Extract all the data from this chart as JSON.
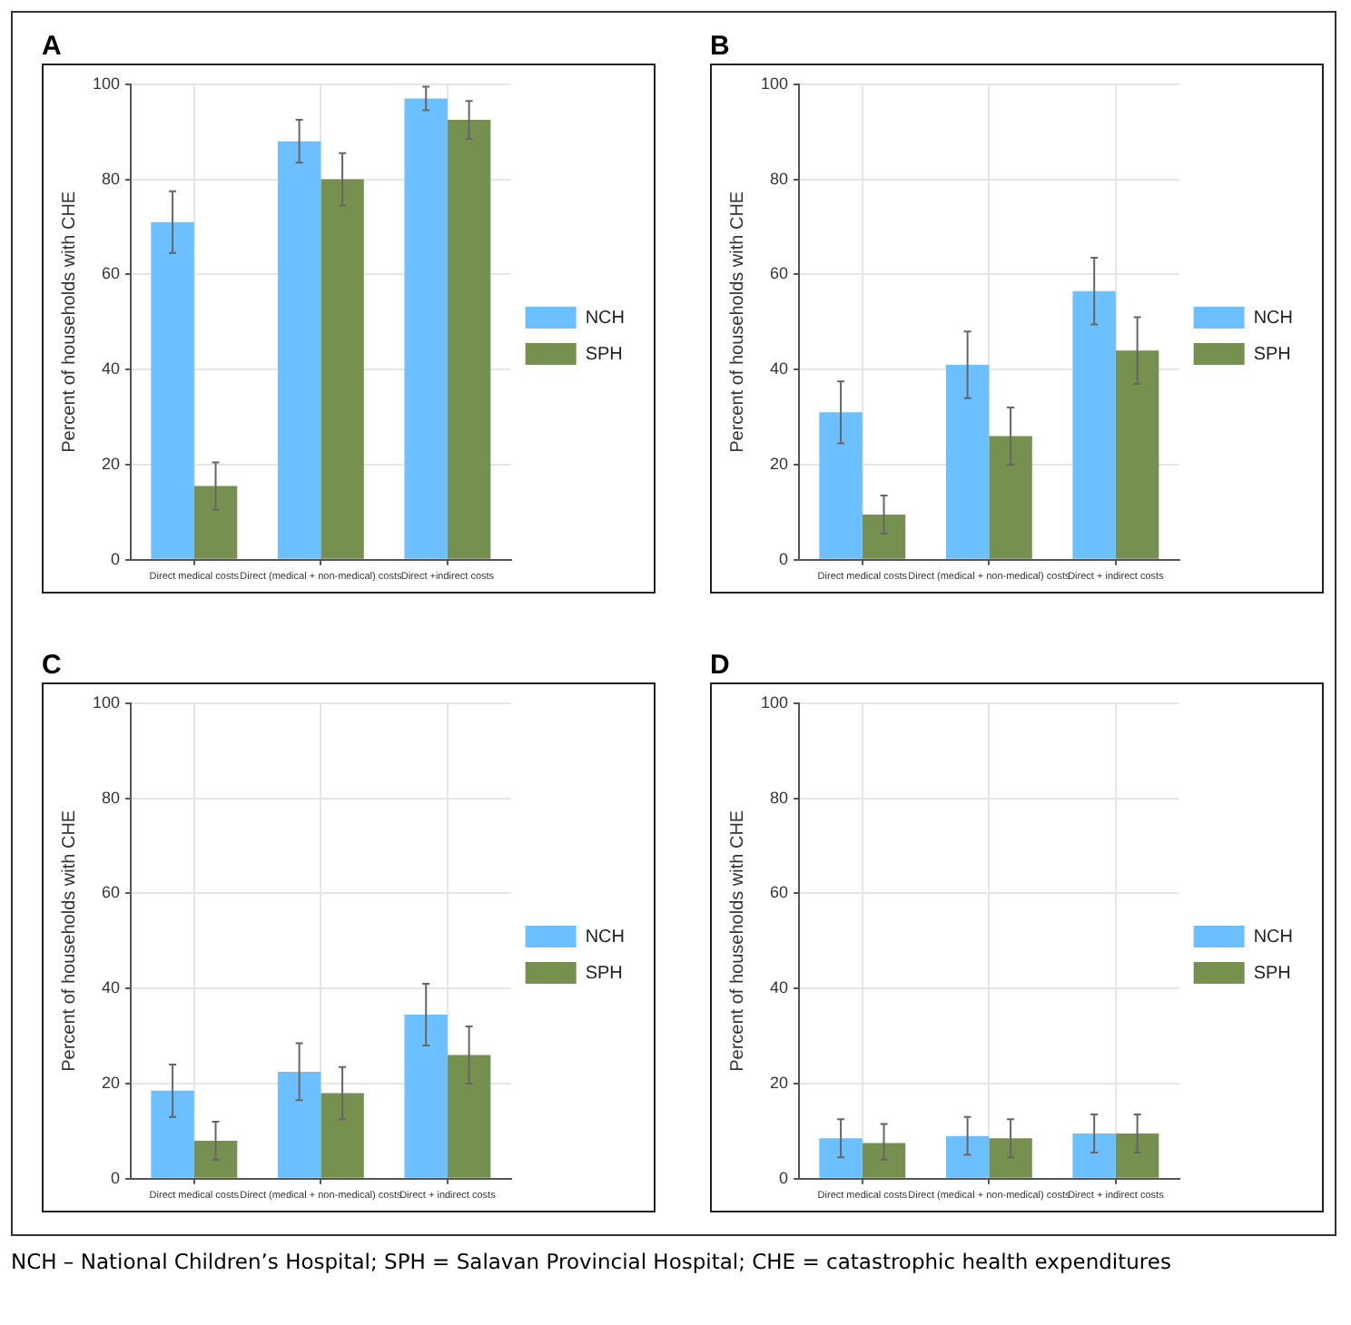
{
  "chart_data": [
    {
      "type": "bar",
      "title": "A",
      "ylabel": "Percent of households with CHE",
      "categories": [
        "Direct medical costs",
        "Direct (medical + non-medical) costs",
        "Direct +indirect costs"
      ],
      "ylim": [
        0,
        100
      ],
      "yticks": [
        0,
        20,
        40,
        60,
        80,
        100
      ],
      "grid": true,
      "legend": "right",
      "series": [
        {
          "name": "NCH",
          "color": "#6cc0ff",
          "values": [
            71,
            88,
            97
          ],
          "errors": [
            [
              64.5,
              77.5
            ],
            [
              83.5,
              92.5
            ],
            [
              94.5,
              99.5
            ]
          ]
        },
        {
          "name": "SPH",
          "color": "#76904f",
          "values": [
            15.5,
            80,
            92.5
          ],
          "errors": [
            [
              10.5,
              20.5
            ],
            [
              74.5,
              85.5
            ],
            [
              88.5,
              96.5
            ]
          ]
        }
      ]
    },
    {
      "type": "bar",
      "title": "B",
      "ylabel": "Percent of households with CHE",
      "categories": [
        "Direct medical costs",
        "Direct (medical + non-medical) costs",
        "Direct + indirect costs"
      ],
      "ylim": [
        0,
        100
      ],
      "yticks": [
        0,
        20,
        40,
        60,
        80,
        100
      ],
      "grid": true,
      "legend": "right",
      "series": [
        {
          "name": "NCH",
          "color": "#6cc0ff",
          "values": [
            31,
            41,
            56.5
          ],
          "errors": [
            [
              24.5,
              37.5
            ],
            [
              34,
              48
            ],
            [
              49.5,
              63.5
            ]
          ]
        },
        {
          "name": "SPH",
          "color": "#76904f",
          "values": [
            9.5,
            26,
            44
          ],
          "errors": [
            [
              5.5,
              13.5
            ],
            [
              20,
              32
            ],
            [
              37,
              51
            ]
          ]
        }
      ]
    },
    {
      "type": "bar",
      "title": "C",
      "ylabel": "Percent of households with CHE",
      "categories": [
        "Direct medical costs",
        "Direct (medical + non-medical) costs",
        "Direct + indirect costs"
      ],
      "ylim": [
        0,
        100
      ],
      "yticks": [
        0,
        20,
        40,
        60,
        80,
        100
      ],
      "grid": true,
      "legend": "right",
      "series": [
        {
          "name": "NCH",
          "color": "#6cc0ff",
          "values": [
            18.5,
            22.5,
            34.5
          ],
          "errors": [
            [
              13,
              24
            ],
            [
              16.5,
              28.5
            ],
            [
              28,
              41
            ]
          ]
        },
        {
          "name": "SPH",
          "color": "#76904f",
          "values": [
            8,
            18,
            26
          ],
          "errors": [
            [
              4,
              12
            ],
            [
              12.5,
              23.5
            ],
            [
              20,
              32
            ]
          ]
        }
      ]
    },
    {
      "type": "bar",
      "title": "D",
      "ylabel": "Percent of households with CHE",
      "categories": [
        "Direct medical costs",
        "Direct (medical + non-medical) costs",
        "Direct + indirect costs"
      ],
      "ylim": [
        0,
        100
      ],
      "yticks": [
        0,
        20,
        40,
        60,
        80,
        100
      ],
      "grid": true,
      "legend": "right",
      "annotations": [
        "NCH – National Children’s Hospital; SPH = Salavan Provincial Hospital; CHE = catastrophic health expenditures"
      ],
      "series": [
        {
          "name": "NCH",
          "color": "#6cc0ff",
          "values": [
            8.5,
            9,
            9.5
          ],
          "errors": [
            [
              4.5,
              12.5
            ],
            [
              5,
              13
            ],
            [
              5.5,
              13.5
            ]
          ]
        },
        {
          "name": "SPH",
          "color": "#76904f",
          "values": [
            7.5,
            8.5,
            9.5
          ],
          "errors": [
            [
              4,
              11.5
            ],
            [
              4.5,
              12.5
            ],
            [
              5.5,
              13.5
            ]
          ]
        }
      ]
    }
  ]
}
